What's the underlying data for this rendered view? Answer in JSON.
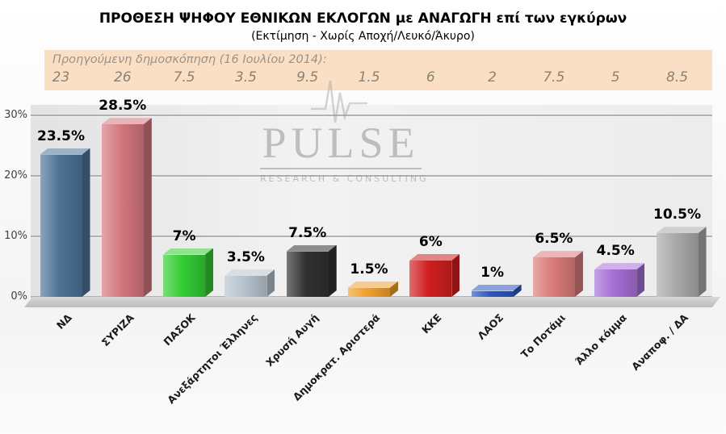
{
  "title": "ΠΡΟΘΕΣΗ ΨΗΦΟΥ ΕΘΝΙΚΩΝ ΕΚΛΟΓΩΝ με ΑΝΑΓΩΓΗ επί των εγκύρων",
  "subtitle": "(Εκτίμηση - Χωρίς Αποχή/Λευκό/Άκυρο)",
  "previous_poll": {
    "label": "Προηγούμενη δημοσκόπηση (16 Ιουλίου 2014):"
  },
  "watermark": {
    "brand": "PULSE",
    "tagline": "RESEARCH & CONSULTING"
  },
  "chart_data": {
    "type": "bar",
    "title": "ΠΡΟΘΕΣΗ ΨΗΦΟΥ ΕΘΝΙΚΩΝ ΕΚΛΟΓΩΝ με ΑΝΑΓΩΓΗ επί των εγκύρων",
    "subtitle": "(Εκτίμηση - Χωρίς Αποχή/Λευκό/Άκυρο)",
    "categories": [
      "ΝΔ",
      "ΣΥΡΙΖΑ",
      "ΠΑΣΟΚ",
      "Ανεξάρτητοι Έλληνες",
      "Χρυσή Αυγή",
      "Δημοκρατ. Αριστερά",
      "ΚΚΕ",
      "ΛΑΟΣ",
      "Το Ποτάμι",
      "Άλλο κόμμα",
      "Αναποφ. / ΔΑ"
    ],
    "values": [
      23.5,
      28.5,
      7,
      3.5,
      7.5,
      1.5,
      6,
      1,
      6.5,
      4.5,
      10.5
    ],
    "previous_values": [
      23,
      26,
      7.5,
      3.5,
      9.5,
      1.5,
      6,
      2,
      7.5,
      5,
      8.5
    ],
    "bar_colors": [
      "#4e7296",
      "#d4767e",
      "#33cc33",
      "#b6c3cd",
      "#303030",
      "#f0a02c",
      "#d01f1f",
      "#2b55c0",
      "#db7b7b",
      "#a76fd6",
      "#a9a9a9"
    ],
    "ylim": [
      0,
      30
    ],
    "ytick_values": [
      0,
      10,
      20,
      30
    ],
    "ytick_labels": [
      "0%",
      "10%",
      "20%",
      "30%"
    ],
    "grid": true,
    "legend": false,
    "value_label_suffix": "%"
  }
}
